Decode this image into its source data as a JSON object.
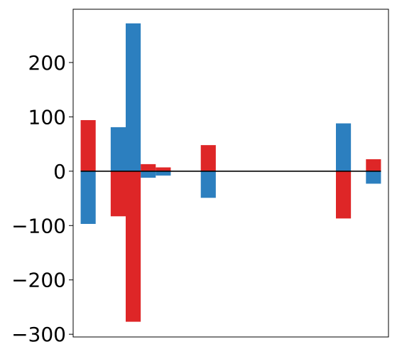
{
  "chart_data": {
    "type": "bar",
    "title": "",
    "xlabel": "",
    "ylabel": "",
    "ylim": [
      -305,
      298
    ],
    "xlim": [
      0,
      21
    ],
    "xticks_visible": false,
    "grid": false,
    "legend": "none",
    "baseline": 0,
    "y_ticks": [
      -300,
      -200,
      -100,
      0,
      100,
      200
    ],
    "y_tick_labels": [
      "−300",
      "−200",
      "−100",
      "0",
      "100",
      "200"
    ],
    "series": [
      {
        "color": "#2c7fbf",
        "bars": [
          {
            "x": 1.0,
            "value": -97
          },
          {
            "x": 3.0,
            "value": 81
          },
          {
            "x": 4.0,
            "value": 272
          },
          {
            "x": 5.0,
            "value": -12
          },
          {
            "x": 6.0,
            "value": -8
          },
          {
            "x": 9.0,
            "value": -49
          },
          {
            "x": 18.0,
            "value": 88
          },
          {
            "x": 20.0,
            "value": -23
          }
        ]
      },
      {
        "color": "#de2627",
        "bars": [
          {
            "x": 1.0,
            "value": 94
          },
          {
            "x": 3.0,
            "value": -83
          },
          {
            "x": 4.0,
            "value": -277
          },
          {
            "x": 5.0,
            "value": 13
          },
          {
            "x": 6.0,
            "value": 7
          },
          {
            "x": 9.0,
            "value": 48
          },
          {
            "x": 18.0,
            "value": -87
          },
          {
            "x": 20.0,
            "value": 22
          }
        ]
      }
    ],
    "bar_width": 1.0
  }
}
